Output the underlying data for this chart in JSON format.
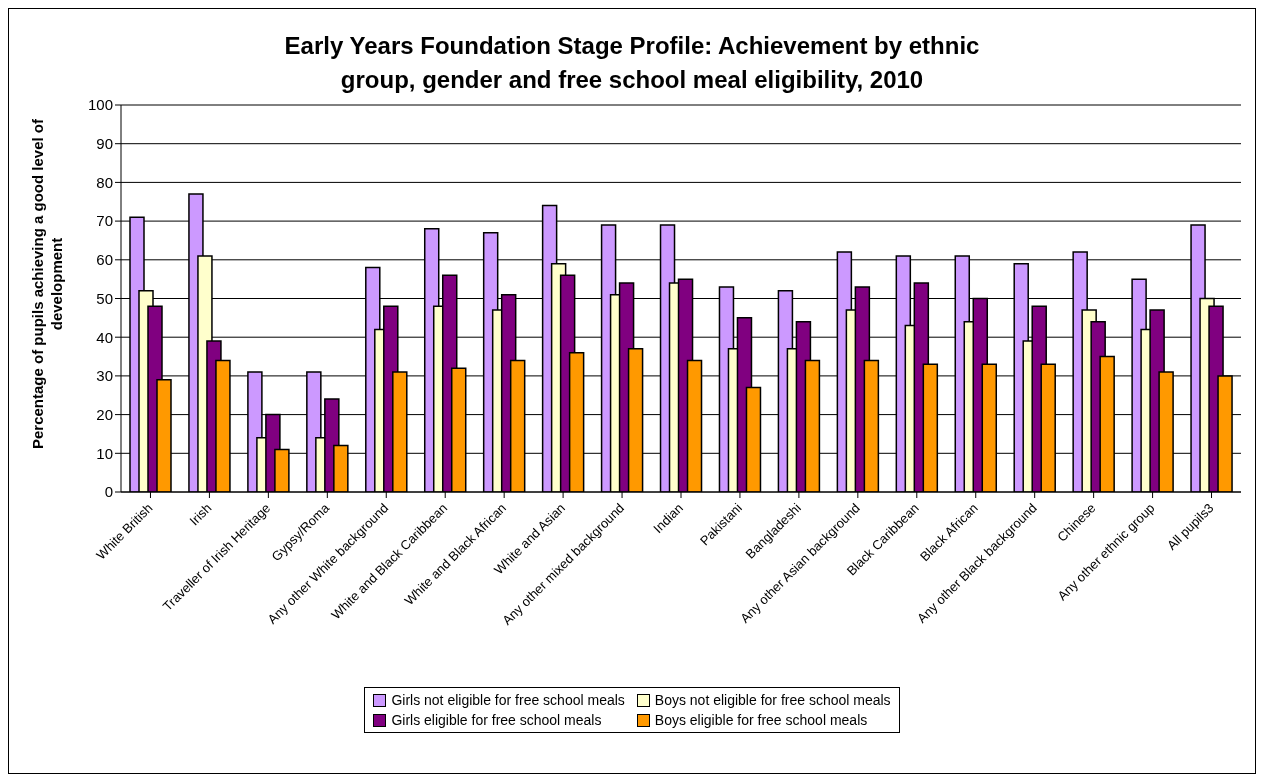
{
  "chart_data": {
    "type": "bar",
    "title": "Early Years Foundation Stage Profile: Achievement by ethnic group, gender and free school meal eligibility, 2010",
    "ylabel": "Percentage of pupils achieving a good level of development",
    "categories": [
      "White British",
      "Irish",
      "Traveller of Irish Heritage",
      "Gypsy/Roma",
      "Any other White background",
      "White and Black Caribbean",
      "White and Black African",
      "White and Asian",
      "Any other mixed background",
      "Indian",
      "Pakistani",
      "Bangladeshi",
      "Any other Asian background",
      "Black Caribbean",
      "Black African",
      "Any other Black background",
      "Chinese",
      "Any other ethnic group",
      "All pupils3"
    ],
    "series": [
      {
        "name": "Girls not eligible for free school meals",
        "color": "#cc99ff",
        "values": [
          71,
          77,
          31,
          31,
          58,
          68,
          67,
          74,
          69,
          69,
          53,
          52,
          62,
          61,
          61,
          59,
          62,
          55,
          69
        ]
      },
      {
        "name": "Boys not eligible for free school meals",
        "color": "#ffffcc",
        "values": [
          52,
          61,
          14,
          14,
          42,
          48,
          47,
          59,
          51,
          54,
          37,
          37,
          47,
          43,
          44,
          39,
          47,
          42,
          50
        ]
      },
      {
        "name": "Girls eligible for free school meals",
        "color": "#800080",
        "values": [
          48,
          39,
          20,
          24,
          48,
          56,
          51,
          56,
          54,
          55,
          45,
          44,
          53,
          54,
          50,
          48,
          44,
          47,
          48
        ]
      },
      {
        "name": "Boys eligible for free school meals",
        "color": "#ff9900",
        "values": [
          29,
          34,
          11,
          12,
          31,
          32,
          34,
          36,
          37,
          34,
          27,
          34,
          34,
          33,
          33,
          33,
          35,
          31,
          30
        ]
      }
    ],
    "ylim": [
      0,
      100
    ],
    "yticks": [
      0,
      10,
      20,
      30,
      40,
      50,
      60,
      70,
      80,
      90,
      100
    ],
    "grid": "y",
    "legend": "bottom"
  }
}
